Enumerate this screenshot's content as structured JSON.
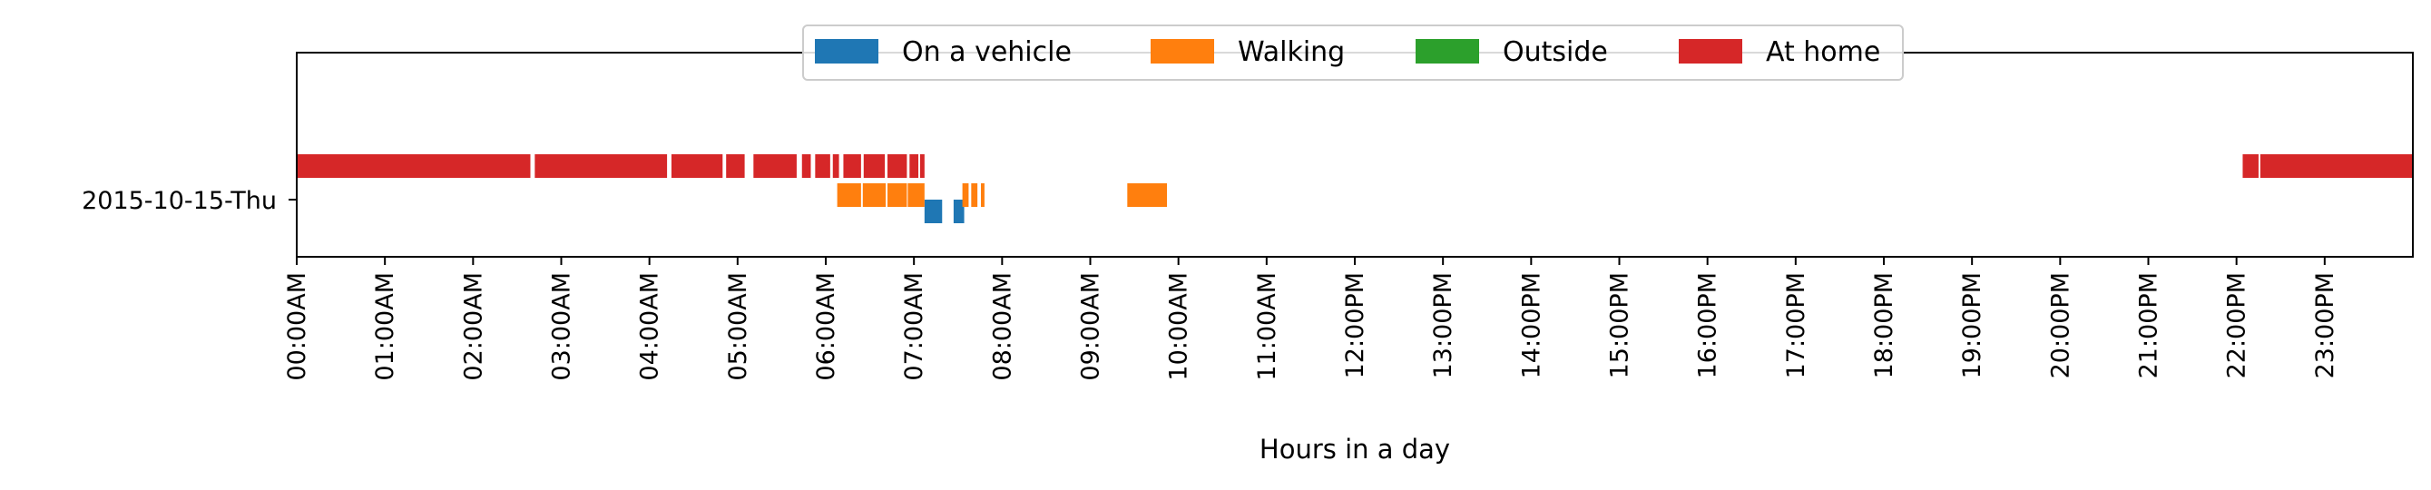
{
  "chart_data": {
    "type": "timeline",
    "xlabel": "Hours in a day",
    "row_label": "2015-10-15-Thu",
    "xlim": [
      0,
      24
    ],
    "x_tick_labels": [
      "00:00AM",
      "01:00AM",
      "02:00AM",
      "03:00AM",
      "04:00AM",
      "05:00AM",
      "06:00AM",
      "07:00AM",
      "08:00AM",
      "09:00AM",
      "10:00AM",
      "11:00AM",
      "12:00PM",
      "13:00PM",
      "14:00PM",
      "15:00PM",
      "16:00PM",
      "17:00PM",
      "18:00PM",
      "19:00PM",
      "20:00PM",
      "21:00PM",
      "22:00PM",
      "23:00PM"
    ],
    "legend_placement": "upper center",
    "series": [
      {
        "name": "On a vehicle",
        "color": "#1f77b4",
        "intervals": [
          [
            7.12,
            7.32
          ],
          [
            7.45,
            7.57
          ]
        ]
      },
      {
        "name": "Walking",
        "color": "#ff7f0e",
        "intervals": [
          [
            6.13,
            6.4
          ],
          [
            6.42,
            6.68
          ],
          [
            6.7,
            6.92
          ],
          [
            6.93,
            7.12
          ],
          [
            7.55,
            7.62
          ],
          [
            7.65,
            7.72
          ],
          [
            7.76,
            7.8
          ],
          [
            9.42,
            9.87
          ]
        ]
      },
      {
        "name": "Outside",
        "color": "#2ca02c",
        "intervals": []
      },
      {
        "name": "At home",
        "color": "#d62728",
        "intervals": [
          [
            0.0,
            2.65
          ],
          [
            2.7,
            4.2
          ],
          [
            4.25,
            4.83
          ],
          [
            4.87,
            5.08
          ],
          [
            5.18,
            5.67
          ],
          [
            5.73,
            5.83
          ],
          [
            5.88,
            6.05
          ],
          [
            6.08,
            6.15
          ],
          [
            6.2,
            6.4
          ],
          [
            6.43,
            6.67
          ],
          [
            6.7,
            6.92
          ],
          [
            6.95,
            7.05
          ],
          [
            7.07,
            7.12
          ],
          [
            22.07,
            22.25
          ],
          [
            22.27,
            24.0
          ]
        ]
      }
    ]
  }
}
